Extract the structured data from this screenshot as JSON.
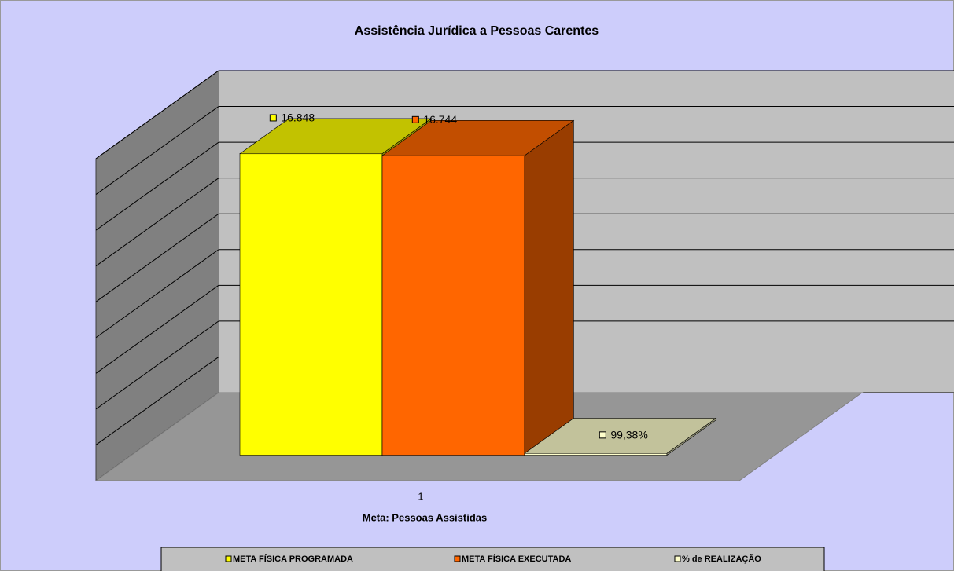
{
  "chart_data": {
    "type": "bar3d",
    "title": "Assistência Jurídica a Pessoas Carentes",
    "x_label": "Meta: Pessoas Assistidas",
    "categories": [
      "1"
    ],
    "series": [
      {
        "name": "META FÍSICA PROGRAMADA",
        "color": "#ffff00",
        "values": [
          16848
        ],
        "value_labels": [
          "16.848"
        ]
      },
      {
        "name": "META FÍSICA EXECUTADA",
        "color": "#ff6600",
        "values": [
          16744
        ],
        "value_labels": [
          "16.744"
        ]
      },
      {
        "name": "% de REALIZAÇÃO",
        "color": "#ffffcc",
        "values": [
          99.38
        ],
        "value_labels": [
          "99,38%"
        ]
      }
    ],
    "ylim": [
      0,
      18000
    ],
    "yticks": [
      0,
      2000,
      4000,
      6000,
      8000,
      10000,
      12000,
      14000,
      16000,
      18000
    ],
    "grid": true,
    "legend": "bottom"
  }
}
